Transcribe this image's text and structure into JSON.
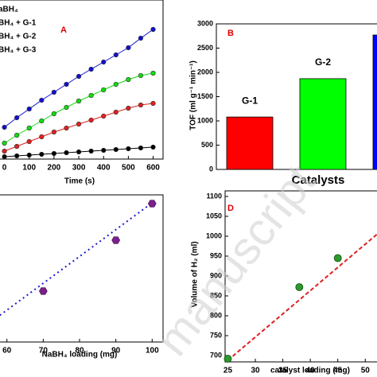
{
  "chart_data": [
    {
      "type": "line",
      "panel": "A",
      "xlabel": "Time (s)",
      "x": [
        0,
        50,
        100,
        150,
        200,
        250,
        300,
        350,
        400,
        450,
        500,
        550,
        600
      ],
      "xlim": [
        -50,
        640
      ],
      "xticks": [
        0,
        100,
        200,
        300,
        400,
        500,
        600
      ],
      "ylim": [
        0,
        200
      ],
      "series": [
        {
          "name": "aBH₄",
          "color": "#000000",
          "values": [
            3,
            4,
            5,
            6,
            7,
            8,
            9,
            10,
            11,
            12,
            13,
            14,
            15
          ]
        },
        {
          "name": "BH₄ + G-1",
          "color": "#e02020",
          "values": [
            10,
            16,
            22,
            28,
            34,
            39,
            44,
            49,
            54,
            59,
            64,
            68,
            70
          ]
        },
        {
          "name": "BH₄ + G-2",
          "color": "#10dd10",
          "values": [
            20,
            30,
            39,
            48,
            57,
            65,
            73,
            80,
            87,
            94,
            100,
            105,
            108
          ]
        },
        {
          "name": "BH₄ + G-3",
          "color": "#1010d0",
          "values": [
            40,
            52,
            63,
            74,
            84,
            94,
            104,
            113,
            122,
            131,
            140,
            152,
            163
          ]
        }
      ]
    },
    {
      "type": "bar",
      "panel": "B",
      "xlabel": "Catalysts",
      "ylabel": "TOF (ml g⁻¹ min⁻¹)",
      "categories": [
        "G-1",
        "G-2",
        null
      ],
      "values": [
        1080,
        1870,
        2770
      ],
      "colors": [
        "#ff0000",
        "#00ff00",
        "#0000ff"
      ],
      "ylim": [
        0,
        3000
      ],
      "yticks": [
        0,
        500,
        1000,
        1500,
        2000,
        2500,
        3000
      ]
    },
    {
      "type": "scatter",
      "xlabel": "NaBH₄ loading (mg)",
      "x": [
        70,
        90,
        100
      ],
      "values": [
        64,
        128,
        174
      ],
      "color": "#7b1f8c",
      "fit_color": "#1a1ad0",
      "fit": {
        "x": [
          57,
          100
        ],
        "y": [
          30,
          175
        ]
      },
      "xlim": [
        57,
        103
      ],
      "xticks": [
        60,
        70,
        80,
        90,
        100
      ],
      "ylim": [
        0,
        185
      ]
    },
    {
      "type": "scatter",
      "panel": "D",
      "xlabel": "catalyst loading (mg)",
      "ylabel": "Volume of H₂ (ml)",
      "x": [
        25,
        38,
        45
      ],
      "values": [
        692,
        872,
        945
      ],
      "color": "#2e9a2e",
      "fit_color": "#dd2020",
      "fit": {
        "x": [
          25,
          53
        ],
        "y": [
          688,
          1015
        ]
      },
      "xlim": [
        24.5,
        53
      ],
      "xticks": [
        25,
        30,
        35,
        40,
        45,
        50
      ],
      "ylim": [
        684,
        1114
      ],
      "yticks": [
        700,
        750,
        800,
        850,
        900,
        950,
        1000,
        1050,
        1100
      ]
    }
  ],
  "watermark": "manuscript"
}
